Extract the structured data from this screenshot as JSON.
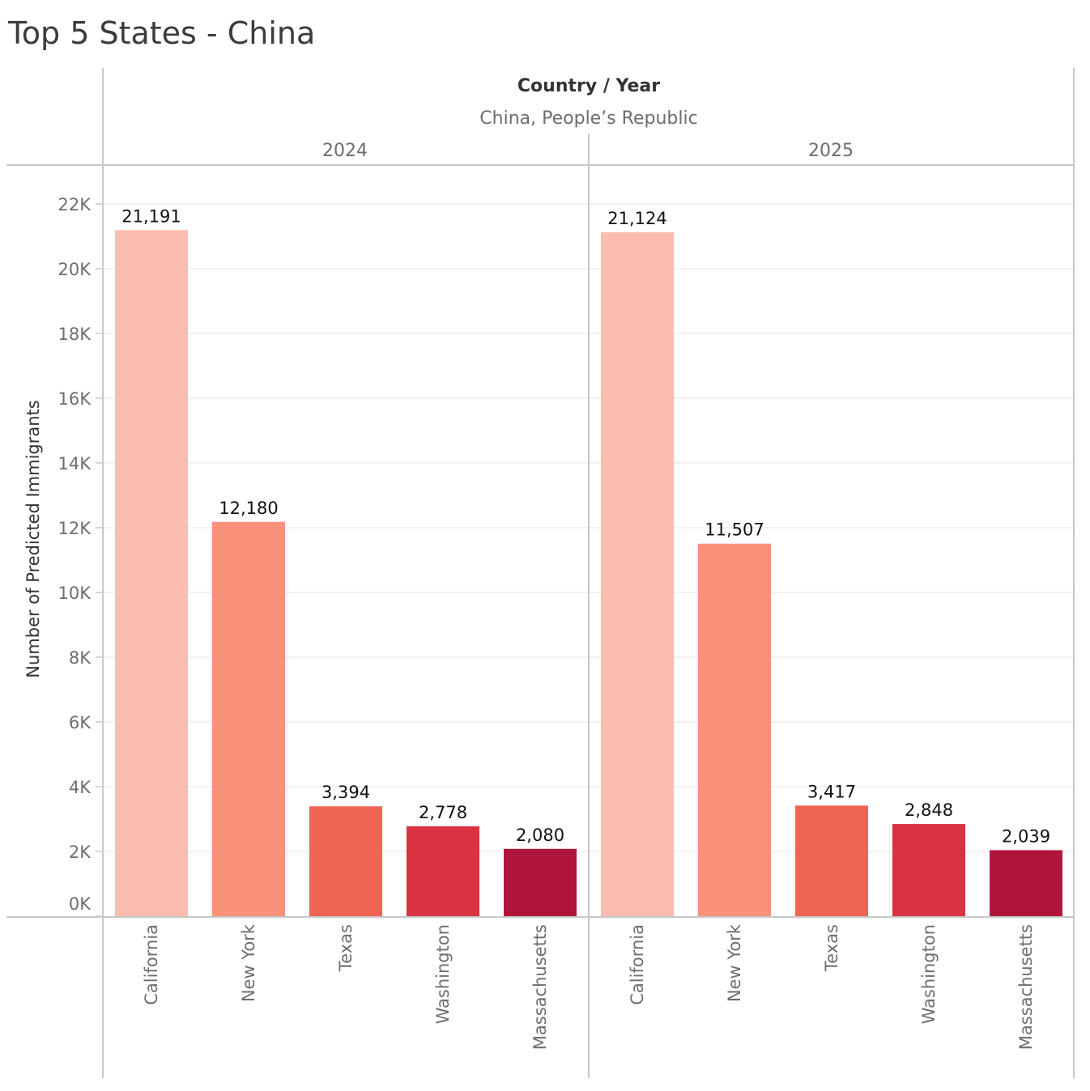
{
  "chart_data": {
    "type": "bar",
    "title": "Top 5 States - China",
    "header_title": "Country / Year",
    "country": "China, People’s Republic",
    "ylabel": "Number of Predicted Immigrants",
    "ylim": [
      0,
      23000
    ],
    "yticks": [
      {
        "value": 0,
        "label": "0K"
      },
      {
        "value": 2000,
        "label": "2K"
      },
      {
        "value": 4000,
        "label": "4K"
      },
      {
        "value": 6000,
        "label": "6K"
      },
      {
        "value": 8000,
        "label": "8K"
      },
      {
        "value": 10000,
        "label": "10K"
      },
      {
        "value": 12000,
        "label": "12K"
      },
      {
        "value": 14000,
        "label": "14K"
      },
      {
        "value": 16000,
        "label": "16K"
      },
      {
        "value": 18000,
        "label": "18K"
      },
      {
        "value": 20000,
        "label": "20K"
      },
      {
        "value": 22000,
        "label": "22K"
      }
    ],
    "grid": true,
    "categories": [
      "California",
      "New York",
      "Texas",
      "Washington",
      "Massachusetts"
    ],
    "colors": [
      "#fdbcb0",
      "#fa917b",
      "#f06454",
      "#d93241",
      "#b0163b"
    ],
    "panels": [
      {
        "year": "2024",
        "values": [
          21191,
          12180,
          3394,
          2778,
          2080
        ],
        "labels": [
          "21,191",
          "12,180",
          "3,394",
          "2,778",
          "2,080"
        ]
      },
      {
        "year": "2025",
        "values": [
          21124,
          11507,
          3417,
          2848,
          2039
        ],
        "labels": [
          "21,124",
          "11,507",
          "3,417",
          "2,848",
          "2,039"
        ]
      }
    ]
  }
}
